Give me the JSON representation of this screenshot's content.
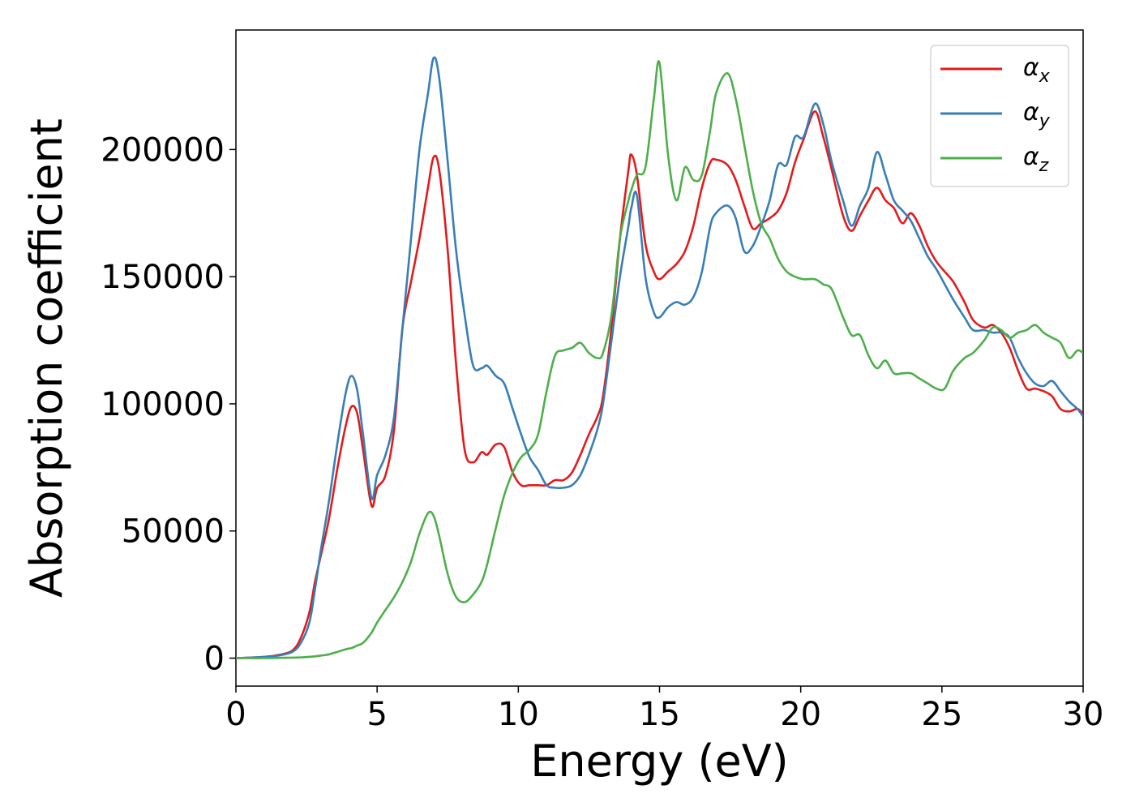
{
  "chart_data": {
    "type": "line",
    "xlabel": "Energy (eV)",
    "ylabel": "Absorption coefficient",
    "xlim": [
      0,
      30
    ],
    "ylim": [
      -11000,
      247000
    ],
    "xticks": [
      0,
      5,
      10,
      15,
      20,
      25,
      30
    ],
    "yticks": [
      0,
      50000,
      100000,
      150000,
      200000
    ],
    "xtick_labels": [
      "0",
      "5",
      "10",
      "15",
      "20",
      "25",
      "30"
    ],
    "ytick_labels": [
      "0",
      "50000",
      "100000",
      "150000",
      "200000"
    ],
    "grid": false,
    "legend_position": "top-right",
    "x": [
      0,
      0.5,
      1,
      1.5,
      2,
      2.3,
      2.6,
      2.8,
      3,
      3.3,
      3.6,
      3.9,
      4.1,
      4.3,
      4.5,
      4.8,
      5,
      5.3,
      5.6,
      5.9,
      6.2,
      6.5,
      6.8,
      7,
      7.2,
      7.5,
      7.8,
      8.1,
      8.4,
      8.7,
      8.9,
      9.2,
      9.5,
      9.8,
      10.1,
      10.4,
      10.7,
      11,
      11.3,
      11.6,
      11.9,
      12.2,
      12.5,
      12.8,
      13,
      13.3,
      13.6,
      13.9,
      14,
      14.2,
      14.5,
      14.8,
      15,
      15.3,
      15.6,
      15.9,
      16.2,
      16.5,
      16.8,
      17,
      17.4,
      17.7,
      18,
      18.3,
      18.6,
      18.9,
      19.2,
      19.5,
      19.8,
      20.1,
      20.5,
      20.8,
      21.1,
      21.5,
      21.8,
      22.1,
      22.4,
      22.7,
      23,
      23.3,
      23.6,
      23.9,
      24.2,
      24.5,
      24.8,
      25.1,
      25.4,
      25.8,
      26.1,
      26.5,
      26.8,
      27.1,
      27.4,
      27.7,
      28,
      28.3,
      28.6,
      28.9,
      29.2,
      29.5,
      29.8,
      30
    ],
    "series": [
      {
        "name": "x",
        "color": "#e41a1c",
        "values": [
          0,
          200,
          500,
          1200,
          3000,
          8000,
          18000,
          30000,
          40000,
          55000,
          75000,
          92000,
          99000,
          96000,
          82000,
          60000,
          67000,
          72000,
          90000,
          130000,
          148000,
          165000,
          185000,
          197000,
          192000,
          160000,
          115000,
          82000,
          77000,
          81000,
          80000,
          84000,
          83000,
          73000,
          68000,
          68000,
          68000,
          68000,
          70000,
          70000,
          73000,
          80000,
          88000,
          95000,
          103000,
          130000,
          165000,
          192000,
          198000,
          190000,
          163000,
          152000,
          149000,
          152000,
          155000,
          160000,
          170000,
          185000,
          195000,
          196000,
          194000,
          188000,
          178000,
          169000,
          171000,
          173000,
          176000,
          183000,
          195000,
          204000,
          215000,
          205000,
          192000,
          174000,
          168000,
          174000,
          180000,
          185000,
          180000,
          177000,
          171000,
          175000,
          170000,
          162000,
          156000,
          152000,
          148000,
          140000,
          133000,
          130000,
          131000,
          128000,
          122000,
          113000,
          106000,
          106000,
          105000,
          103000,
          98000,
          97000,
          98000,
          96000
        ]
      },
      {
        "name": "y",
        "color": "#377eb8",
        "values": [
          0,
          200,
          500,
          1000,
          2500,
          6000,
          14000,
          27000,
          42000,
          62000,
          85000,
          105000,
          111000,
          105000,
          88000,
          63000,
          72000,
          80000,
          95000,
          130000,
          165000,
          200000,
          222000,
          236000,
          228000,
          195000,
          160000,
          135000,
          115000,
          114000,
          115000,
          111000,
          108000,
          98000,
          88000,
          79000,
          74000,
          68000,
          67000,
          67000,
          68000,
          72000,
          80000,
          90000,
          100000,
          125000,
          150000,
          170000,
          177000,
          182000,
          150000,
          136000,
          134000,
          138000,
          140000,
          139000,
          142000,
          152000,
          170000,
          175000,
          178000,
          173000,
          160000,
          162000,
          170000,
          180000,
          194000,
          194000,
          205000,
          205000,
          218000,
          210000,
          195000,
          180000,
          170000,
          178000,
          185000,
          199000,
          190000,
          180000,
          176000,
          172000,
          165000,
          158000,
          153000,
          147000,
          141000,
          134000,
          129000,
          129000,
          128000,
          128000,
          126000,
          118000,
          112000,
          108000,
          107000,
          109000,
          105000,
          101000,
          98000,
          95000
        ]
      },
      {
        "name": "z",
        "color": "#4daf4a",
        "values": [
          0,
          0,
          0,
          100,
          200,
          300,
          500,
          700,
          1000,
          1500,
          2500,
          3500,
          4000,
          5000,
          6000,
          10000,
          14000,
          19000,
          24000,
          30000,
          38000,
          49000,
          57000,
          56000,
          48000,
          33000,
          24000,
          22000,
          25000,
          30000,
          37000,
          51000,
          64000,
          73000,
          79000,
          82000,
          88000,
          105000,
          119000,
          121000,
          122000,
          124000,
          120000,
          118000,
          120000,
          135000,
          165000,
          180000,
          184000,
          190000,
          193000,
          220000,
          234000,
          198000,
          180000,
          193000,
          188000,
          190000,
          208000,
          222000,
          230000,
          220000,
          202000,
          184000,
          171000,
          165000,
          157000,
          152000,
          150000,
          149000,
          149000,
          147000,
          145000,
          134000,
          127000,
          127000,
          119000,
          114000,
          117000,
          112000,
          112000,
          112000,
          110000,
          108000,
          106000,
          106000,
          113000,
          118000,
          120000,
          125000,
          130000,
          129000,
          126000,
          128000,
          129000,
          131000,
          128000,
          126000,
          124000,
          118000,
          121000,
          120000
        ]
      }
    ]
  },
  "legend": {
    "entries": [
      {
        "symbol": "α",
        "subscript": "x"
      },
      {
        "symbol": "α",
        "subscript": "y"
      },
      {
        "symbol": "α",
        "subscript": "z"
      }
    ]
  }
}
